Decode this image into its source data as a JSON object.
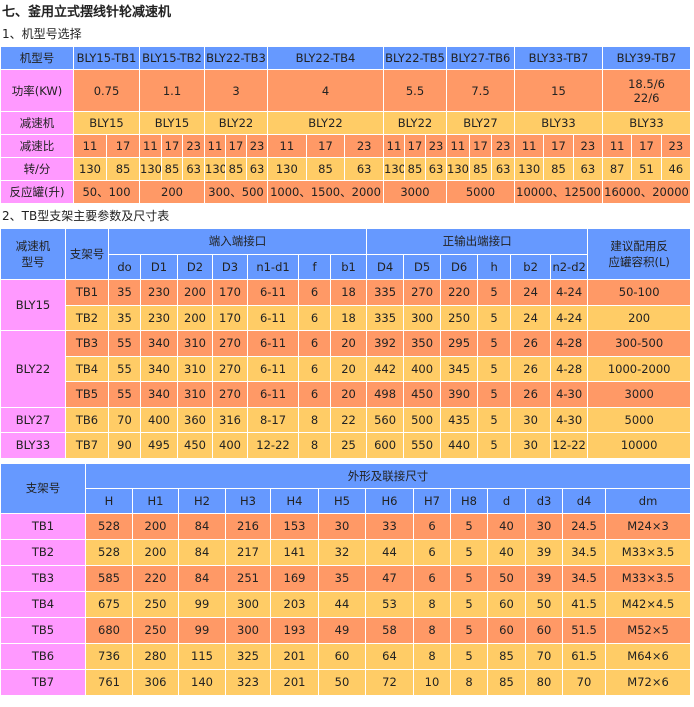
{
  "title": "七、釜用立式摆线针轮减速机",
  "section1": "1、机型号选择",
  "section2": "2、TB型支架主要参数及尺寸表",
  "colors": {
    "header": "#6699ff",
    "label": "#ff99ff",
    "orange": "#ff9966",
    "yellow": "#ffcc66"
  },
  "table1": {
    "header_label": "机型号",
    "models": [
      "BLY15-TB1",
      "BLY15-TB2",
      "BLY22-TB3",
      "BLY22-TB4",
      "BLY22-TB5",
      "BLY27-TB6",
      "BLY33-TB7",
      "BLY39-TB7"
    ],
    "power_label": "功率(KW)",
    "power": [
      "0.75",
      "1.1",
      "3",
      "4",
      "5.5",
      "7.5",
      "15",
      "18.5/6\n22/6"
    ],
    "reducer_label": "减速机",
    "reducer": [
      "BLY15",
      "BLY15",
      "BLY22",
      "BLY22",
      "BLY22",
      "BLY27",
      "BLY33",
      "BLY33"
    ],
    "ratio_label": "减速比",
    "ratio": [
      [
        "11",
        "17"
      ],
      [
        "11",
        "17",
        "23"
      ],
      [
        "11",
        "17",
        "23"
      ],
      [
        "11",
        "17",
        "23"
      ],
      [
        "11",
        "17",
        "23"
      ],
      [
        "11",
        "17",
        "23"
      ],
      [
        "11",
        "17",
        "23"
      ],
      [
        "11",
        "17",
        "23"
      ]
    ],
    "speed_label": "转/分",
    "speed": [
      [
        "130",
        "85"
      ],
      [
        "130",
        "85",
        "63"
      ],
      [
        "130",
        "85",
        "63"
      ],
      [
        "130",
        "85",
        "63"
      ],
      [
        "130",
        "85",
        "63"
      ],
      [
        "130",
        "85",
        "63"
      ],
      [
        "130",
        "85",
        "63"
      ],
      [
        "87",
        "51",
        "46"
      ]
    ],
    "tank_label": "反应罐(升)",
    "tank": [
      "50、100",
      "200",
      "300、500",
      "1000、1500、2000",
      "3000",
      "5000",
      "10000、12500",
      "16000、20000"
    ]
  },
  "table2": {
    "h_reducer": "减速机\n型号",
    "h_bracket": "支架号",
    "h_input": "端入端接口",
    "h_output": "正输出端接口",
    "h_tank": "建议配用反\n应罐容积(L)",
    "cols": [
      "do",
      "D1",
      "D2",
      "D3",
      "n1-d1",
      "f",
      "b1",
      "D4",
      "D5",
      "D6",
      "h",
      "b2",
      "n2-d2"
    ],
    "groups": [
      {
        "name": "BLY15",
        "rows": 2
      },
      {
        "name": "BLY22",
        "rows": 3
      },
      {
        "name": "BLY27",
        "rows": 1
      },
      {
        "name": "BLY33",
        "rows": 1
      }
    ],
    "rows": [
      {
        "color": "o",
        "cells": [
          "TB1",
          "35",
          "230",
          "200",
          "170",
          "6-11",
          "6",
          "18",
          "335",
          "270",
          "220",
          "5",
          "24",
          "4-24",
          "50-100"
        ]
      },
      {
        "color": "y",
        "cells": [
          "TB2",
          "35",
          "230",
          "200",
          "170",
          "6-11",
          "6",
          "18",
          "335",
          "300",
          "250",
          "5",
          "24",
          "4-24",
          "200"
        ]
      },
      {
        "color": "o",
        "cells": [
          "TB3",
          "55",
          "340",
          "310",
          "270",
          "6-11",
          "6",
          "20",
          "392",
          "350",
          "295",
          "5",
          "26",
          "4-28",
          "300-500"
        ]
      },
      {
        "color": "y",
        "cells": [
          "TB4",
          "55",
          "340",
          "310",
          "270",
          "6-11",
          "6",
          "20",
          "442",
          "400",
          "345",
          "5",
          "26",
          "4-28",
          "1000-2000"
        ]
      },
      {
        "color": "o",
        "cells": [
          "TB5",
          "55",
          "340",
          "310",
          "270",
          "6-11",
          "6",
          "20",
          "498",
          "450",
          "390",
          "5",
          "26",
          "4-30",
          "3000"
        ]
      },
      {
        "color": "y",
        "cells": [
          "TB6",
          "70",
          "400",
          "360",
          "316",
          "8-17",
          "8",
          "22",
          "560",
          "500",
          "435",
          "5",
          "30",
          "4-30",
          "5000"
        ]
      },
      {
        "color": "y",
        "cells": [
          "TB7",
          "90",
          "495",
          "450",
          "400",
          "12-22",
          "8",
          "25",
          "600",
          "550",
          "440",
          "5",
          "30",
          "12-22",
          "10000"
        ]
      }
    ]
  },
  "table3": {
    "h_bracket": "支架号",
    "h_dims": "外形及联接尺寸",
    "cols": [
      "H",
      "H1",
      "H2",
      "H3",
      "H4",
      "H5",
      "H6",
      "H7",
      "H8",
      "d",
      "d3",
      "d4",
      "dm"
    ],
    "rows": [
      {
        "color": "o",
        "cells": [
          "TB1",
          "528",
          "200",
          "84",
          "216",
          "153",
          "30",
          "33",
          "6",
          "5",
          "40",
          "30",
          "24.5",
          "M24×3"
        ]
      },
      {
        "color": "y",
        "cells": [
          "TB2",
          "528",
          "200",
          "84",
          "217",
          "141",
          "32",
          "44",
          "6",
          "5",
          "40",
          "39",
          "34.5",
          "M33×3.5"
        ]
      },
      {
        "color": "o",
        "cells": [
          "TB3",
          "585",
          "220",
          "84",
          "251",
          "169",
          "35",
          "47",
          "6",
          "5",
          "50",
          "39",
          "34.5",
          "M33×3.5"
        ]
      },
      {
        "color": "y",
        "cells": [
          "TB4",
          "675",
          "250",
          "99",
          "300",
          "203",
          "44",
          "53",
          "8",
          "5",
          "60",
          "50",
          "41.5",
          "M42×4.5"
        ]
      },
      {
        "color": "o",
        "cells": [
          "TB5",
          "680",
          "250",
          "99",
          "300",
          "193",
          "49",
          "58",
          "8",
          "5",
          "60",
          "60",
          "51.5",
          "M52×5"
        ]
      },
      {
        "color": "y",
        "cells": [
          "TB6",
          "736",
          "280",
          "115",
          "325",
          "201",
          "60",
          "64",
          "8",
          "5",
          "85",
          "70",
          "61.5",
          "M64×6"
        ]
      },
      {
        "color": "y",
        "cells": [
          "TB7",
          "761",
          "306",
          "140",
          "323",
          "201",
          "50",
          "72",
          "10",
          "8",
          "85",
          "80",
          "70",
          "M72×6"
        ]
      }
    ]
  }
}
